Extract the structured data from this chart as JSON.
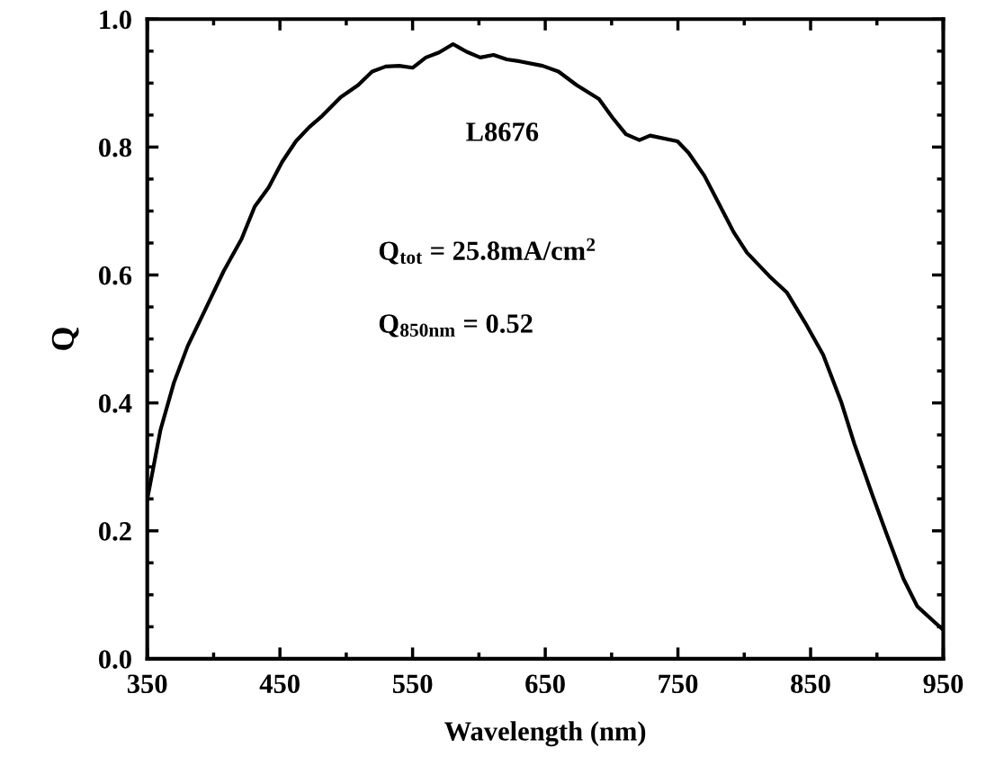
{
  "chart_data": {
    "type": "line",
    "xlabel": "Wavelength (nm)",
    "ylabel": "Q",
    "x": [
      350,
      360,
      370,
      380.5,
      394,
      407.6,
      421,
      431,
      441.5,
      451.7,
      462,
      472,
      482,
      495.8,
      509,
      519.5,
      529.7,
      540,
      550,
      560,
      570,
      580.5,
      590.7,
      601,
      611,
      621,
      631,
      648,
      660,
      673.6,
      690.5,
      700.7,
      710.8,
      721,
      729,
      749.7,
      758,
      770,
      780,
      792,
      802,
      819,
      832,
      846,
      859.5,
      873,
      883,
      896.6,
      906.8,
      920,
      930.4,
      942,
      950
    ],
    "series": [
      {
        "color": "#000000",
        "values": [
          0.249,
          0.358,
          0.431,
          0.489,
          0.547,
          0.606,
          0.656,
          0.707,
          0.737,
          0.777,
          0.809,
          0.831,
          0.849,
          0.878,
          0.897,
          0.918,
          0.926,
          0.927,
          0.924,
          0.94,
          0.948,
          0.961,
          0.949,
          0.94,
          0.944,
          0.937,
          0.934,
          0.927,
          0.918,
          0.897,
          0.875,
          0.846,
          0.82,
          0.811,
          0.818,
          0.809,
          0.791,
          0.755,
          0.715,
          0.667,
          0.635,
          0.598,
          0.573,
          0.525,
          0.475,
          0.402,
          0.336,
          0.256,
          0.198,
          0.125,
          0.082,
          0.06,
          0.045
        ]
      }
    ],
    "xlim": [
      350,
      950
    ],
    "xticks": [
      350,
      450,
      550,
      650,
      750,
      850,
      950
    ],
    "ylim": [
      0,
      1
    ],
    "yticks": [
      {
        "value": 0,
        "label": "0.0"
      },
      0.2,
      0.4,
      0.6,
      0.8,
      {
        "value": 1,
        "label": "1.0"
      }
    ],
    "annotations": [
      "L8676",
      "Q$_{tot}$ = 25.8mA/cm$^{2}$",
      "Q$_{850nm}$ = 0.52"
    ],
    "grid": false,
    "legend": false,
    "marker": "none",
    "line_style": "solid"
  }
}
